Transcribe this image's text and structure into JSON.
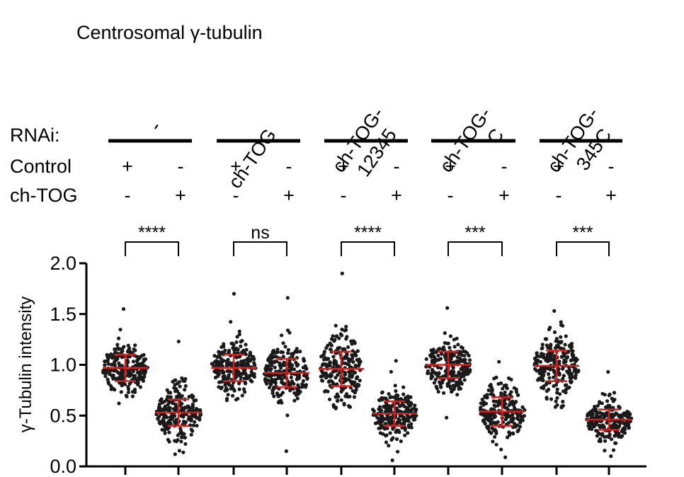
{
  "chart_data": {
    "type": "scatter",
    "title": "Centrosomal γ-tubulin",
    "ylabel": "γ-Tubulin intensity",
    "ylim": [
      0,
      2.0
    ],
    "yticks": [
      "0.0",
      "0.5",
      "1.0",
      "1.5",
      "2.0"
    ],
    "row_labels": {
      "rnai": "RNAi:",
      "control": "Control",
      "chtog": "ch-TOG"
    },
    "groups": [
      {
        "name": "-",
        "name_lines": [
          "-"
        ],
        "significance": "****"
      },
      {
        "name": "ch-TOG",
        "name_lines": [
          "ch-TOG"
        ],
        "significance": "ns"
      },
      {
        "name": "ch-TOG-12345",
        "name_lines": [
          "ch-TOG-",
          "12345"
        ],
        "significance": "****"
      },
      {
        "name": "ch-TOG-C",
        "name_lines": [
          "ch-TOG-",
          "C"
        ],
        "significance": "***"
      },
      {
        "name": "ch-TOG-345C",
        "name_lines": [
          "ch-TOG-",
          "345C"
        ],
        "significance": "***"
      }
    ],
    "conditions": [
      {
        "group": "-",
        "control": "+",
        "chtog": "-",
        "mean": 0.97,
        "sd": 0.13,
        "min": 0.62,
        "max": 1.55
      },
      {
        "group": "-",
        "control": "-",
        "chtog": "+",
        "mean": 0.53,
        "sd": 0.13,
        "min": 0.12,
        "max": 1.23
      },
      {
        "group": "ch-TOG",
        "control": "+",
        "chtog": "-",
        "mean": 0.97,
        "sd": 0.13,
        "min": 0.65,
        "max": 1.7
      },
      {
        "group": "ch-TOG",
        "control": "-",
        "chtog": "+",
        "mean": 0.92,
        "sd": 0.14,
        "min": 0.15,
        "max": 1.66
      },
      {
        "group": "ch-TOG-12345",
        "control": "+",
        "chtog": "-",
        "mean": 0.96,
        "sd": 0.17,
        "min": 0.57,
        "max": 1.9
      },
      {
        "group": "ch-TOG-12345",
        "control": "-",
        "chtog": "+",
        "mean": 0.52,
        "sd": 0.12,
        "min": 0.06,
        "max": 1.04
      },
      {
        "group": "ch-TOG-C",
        "control": "+",
        "chtog": "-",
        "mean": 1.0,
        "sd": 0.13,
        "min": 0.48,
        "max": 1.56
      },
      {
        "group": "ch-TOG-C",
        "control": "-",
        "chtog": "+",
        "mean": 0.54,
        "sd": 0.14,
        "min": 0.09,
        "max": 1.03
      },
      {
        "group": "ch-TOG-345C",
        "control": "+",
        "chtog": "-",
        "mean": 0.99,
        "sd": 0.15,
        "min": 0.58,
        "max": 1.53
      },
      {
        "group": "ch-TOG-345C",
        "control": "-",
        "chtog": "+",
        "mean": 0.46,
        "sd": 0.1,
        "min": 0.1,
        "max": 0.93
      }
    ],
    "colors": {
      "points": "#1a1a1a",
      "mean_sd": "#d62020",
      "axis": "#000000"
    }
  }
}
